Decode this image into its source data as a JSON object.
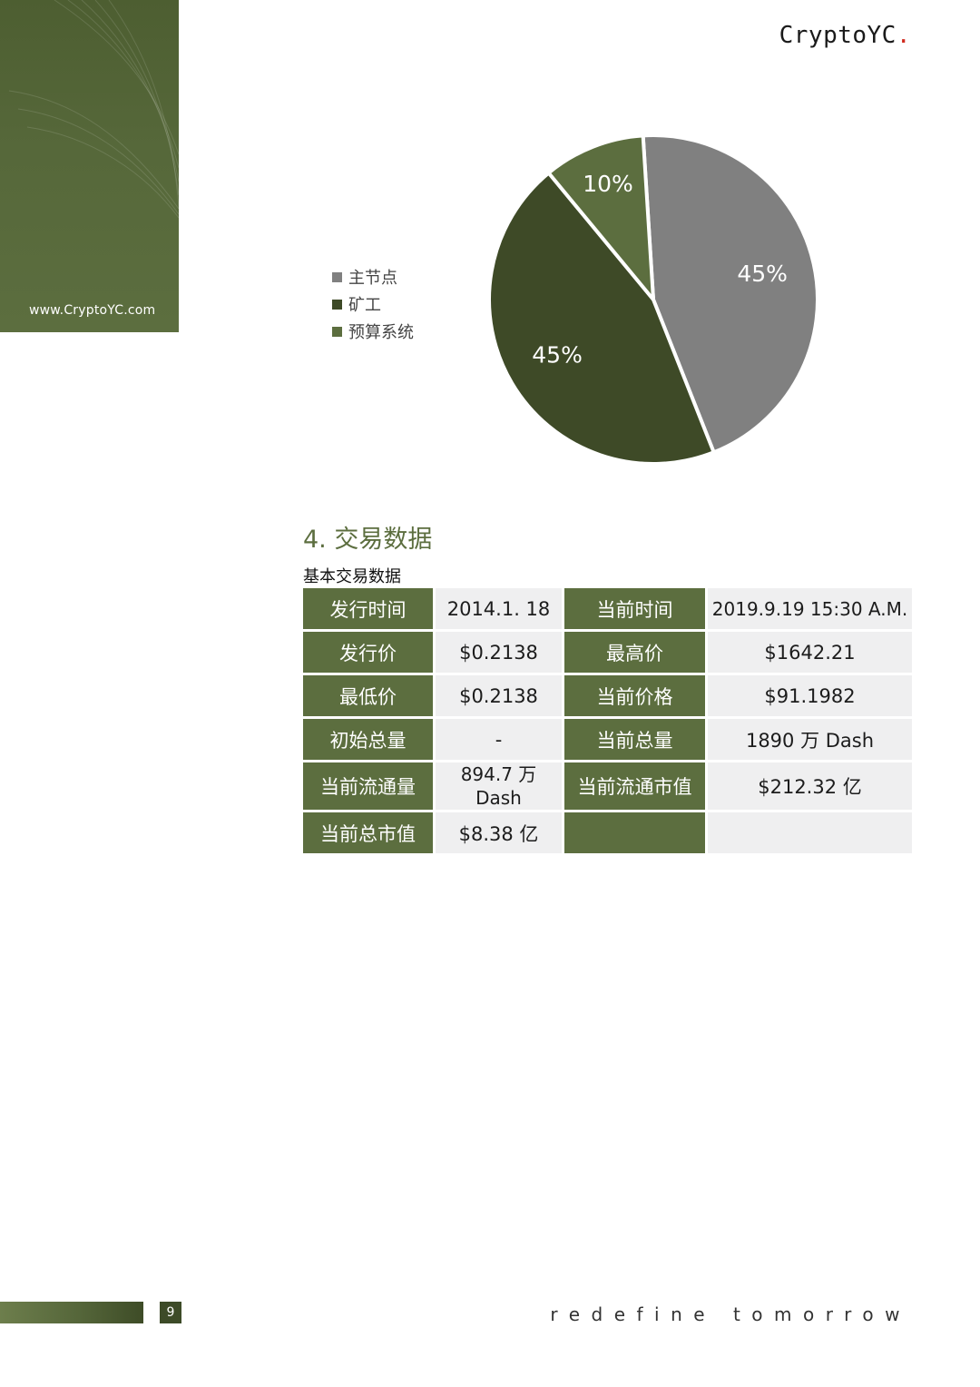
{
  "brand": {
    "name": "CryptoYC",
    "dot": "."
  },
  "side_panel": {
    "url": "www.CryptoYC.com"
  },
  "colors": {
    "accent": "#5c6e3f",
    "dark_green": "#3e4a27",
    "gray": "#808080",
    "brand_dot": "#d02a1e"
  },
  "chart_data": {
    "type": "pie",
    "categories": [
      "主节点",
      "矿工",
      "预算系统"
    ],
    "values": [
      45,
      45,
      10
    ],
    "labels": [
      "45%",
      "45%",
      "10%"
    ],
    "colors": [
      "#808080",
      "#3e4a27",
      "#5c6e3f"
    ],
    "legend_position": "left"
  },
  "section": {
    "title": "4. 交易数据",
    "table_caption": "基本交易数据"
  },
  "table": {
    "rows": [
      [
        "发行时间",
        "2014.1. 18",
        "当前时间",
        "2019.9.19 15:30 A.M."
      ],
      [
        "发行价",
        "$0.2138",
        "最高价",
        "$1642.21"
      ],
      [
        "最低价",
        "$0.2138",
        "当前价格",
        "$91.1982"
      ],
      [
        "初始总量",
        "-",
        "当前总量",
        "1890 万 Dash"
      ],
      [
        "当前流通量",
        "894.7 万 Dash",
        "当前流通市值",
        "$212.32 亿"
      ],
      [
        "当前总市值",
        "$8.38 亿",
        "",
        ""
      ]
    ]
  },
  "footer": {
    "page_number": "9",
    "tagline": "redefine tomorrow"
  }
}
